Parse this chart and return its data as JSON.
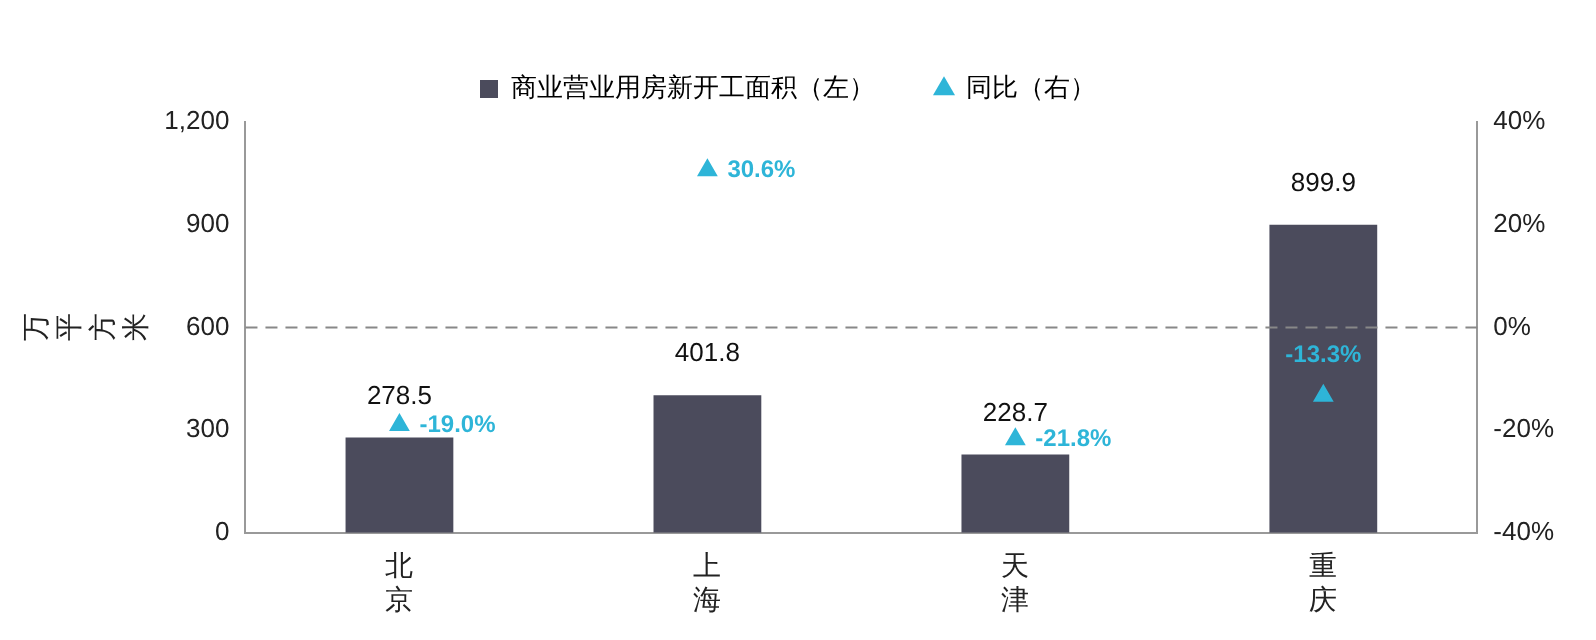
{
  "chart_data": {
    "type": "bar",
    "ylabel": "万平方米",
    "categories": [
      "北京",
      "上海",
      "天津",
      "重庆"
    ],
    "series": [
      {
        "name": "商业营业用房新开工面积（左）",
        "color": "#4b4b5c",
        "values": [
          278.5,
          401.8,
          228.7,
          899.9
        ]
      },
      {
        "name": "同比（右）",
        "type": "scatter",
        "axis": "y2",
        "color": "#2eb5d8",
        "marker": "triangle",
        "values": [
          -19.0,
          30.6,
          -21.8,
          -13.3
        ],
        "value_labels": [
          "-19.0%",
          "30.6%",
          "-21.8%",
          "-13.3%"
        ]
      }
    ],
    "data_labels": true,
    "ylim": [
      0,
      1200
    ],
    "yticks": [
      0,
      300,
      600,
      900,
      {
        "value": 1200,
        "label": "1,200"
      }
    ],
    "y2lim": [
      -40,
      40
    ],
    "y2ticks": [
      {
        "value": -40,
        "label": "-40%"
      },
      {
        "value": -20,
        "label": "-20%"
      },
      {
        "value": 0,
        "label": "0%"
      },
      {
        "value": 20,
        "label": "20%"
      },
      {
        "value": 40,
        "label": "40%"
      }
    ],
    "ref_lines": [
      {
        "axis": "y2",
        "value": 0,
        "color": "#888888",
        "line_style": "dashed"
      }
    ],
    "grid": false,
    "legend": "top"
  }
}
